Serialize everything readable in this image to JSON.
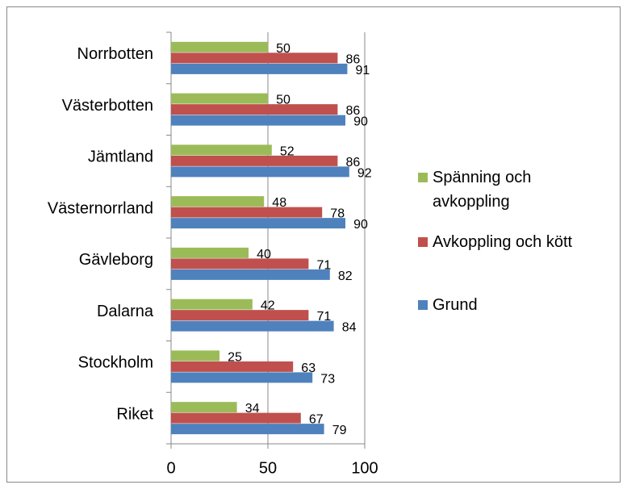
{
  "chart_data": {
    "type": "bar",
    "orientation": "horizontal",
    "categories": [
      "Norrbotten",
      "Västerbotten",
      "Jämtland",
      "Västernorrland",
      "Gävleborg",
      "Dalarna",
      "Stockholm",
      "Riket"
    ],
    "series": [
      {
        "name": "Spänning och avkoppling",
        "color": "#9bbb59",
        "values": [
          50,
          50,
          52,
          48,
          40,
          42,
          25,
          34
        ]
      },
      {
        "name": "Avkoppling och kött",
        "color": "#c0504d",
        "values": [
          86,
          86,
          86,
          78,
          71,
          71,
          63,
          67
        ]
      },
      {
        "name": "Grund",
        "color": "#4f81bd",
        "values": [
          91,
          90,
          92,
          90,
          82,
          84,
          73,
          79
        ]
      }
    ],
    "xlim": [
      0,
      100
    ],
    "xticks": [
      0,
      50,
      100
    ],
    "grid": true,
    "data_labels": true,
    "legend": "right"
  }
}
